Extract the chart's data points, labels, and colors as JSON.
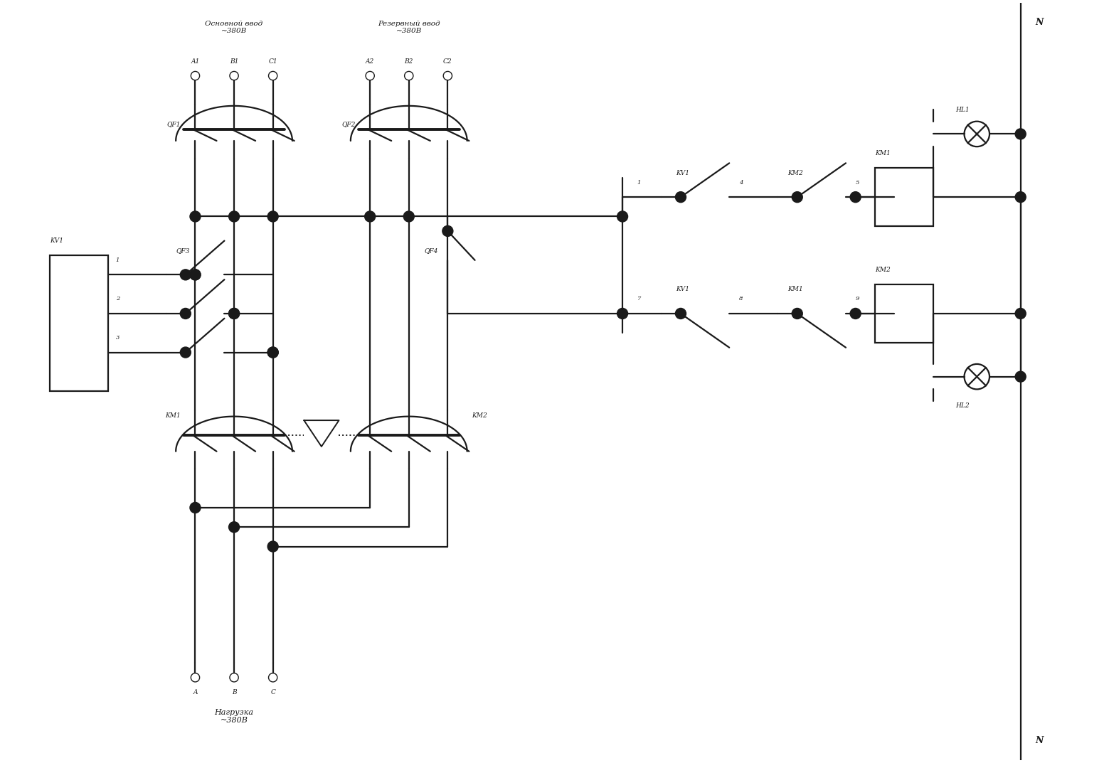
{
  "bg_color": "#ffffff",
  "line_color": "#1a1a1a",
  "lw": 1.6,
  "fig_w": 15.59,
  "fig_h": 10.73,
  "texts": {
    "osnov": "Основной ввод\n~380В",
    "rezerv": "Резервный ввод\n~380В",
    "nagruzka": "Нагрузка\n~380В",
    "N_top": "N",
    "N_bot": "N",
    "QF1": "QF1",
    "QF2": "QF2",
    "QF3": "QF3",
    "QF4": "QF4",
    "KV1_box": "KV1",
    "KM1_cont": "KM1",
    "KM2_cont": "KM2",
    "A1": "A1",
    "B1": "B1",
    "C1": "C1",
    "A2": "A2",
    "B2": "B2",
    "C2": "C2",
    "A": "A",
    "B": "B",
    "C": "C",
    "n1": "1",
    "n2": "2",
    "n3": "3",
    "n1r": "1",
    "n4": "4",
    "n5": "5",
    "n7": "7",
    "n8": "8",
    "n9": "9",
    "KV1_sw1": "KV1",
    "KM2_sw": "KM2",
    "KM1_coil": "KM1",
    "HL1": "HL1",
    "KV1_sw2": "KV1",
    "KM1_sw": "KM1",
    "KM2_coil": "KM2",
    "HL2": "HL2"
  }
}
